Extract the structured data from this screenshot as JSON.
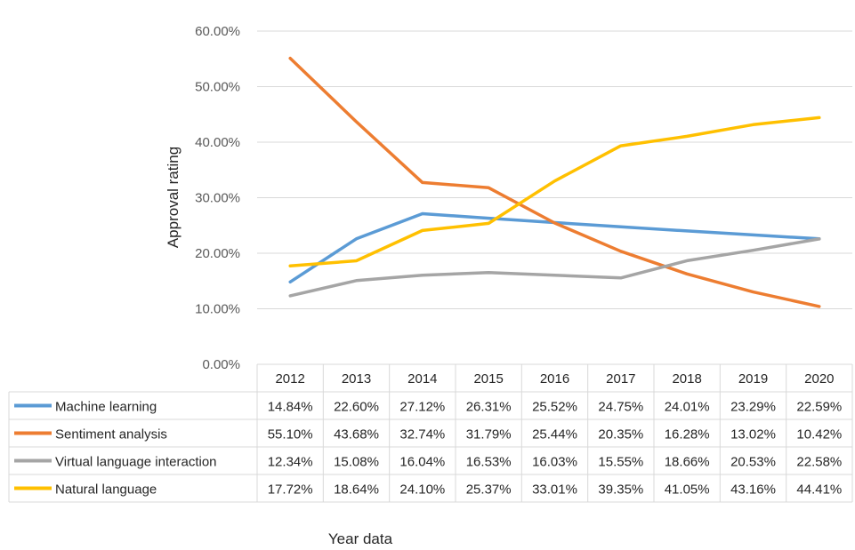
{
  "chart_data": {
    "type": "line",
    "title": "",
    "xlabel": "Year data",
    "ylabel": "Approval rating",
    "ylim": [
      0,
      0.6
    ],
    "y_ticks": [
      "0.00%",
      "10.00%",
      "20.00%",
      "30.00%",
      "40.00%",
      "50.00%",
      "60.00%"
    ],
    "grid": true,
    "legend": "data-table-left",
    "categories": [
      "2012",
      "2013",
      "2014",
      "2015",
      "2016",
      "2017",
      "2018",
      "2019",
      "2020"
    ],
    "series": [
      {
        "name": "Machine learning",
        "color": "#5B9BD5",
        "values": [
          0.1484,
          0.226,
          0.2712,
          0.2631,
          0.2552,
          0.2475,
          0.2401,
          0.2329,
          0.2259
        ],
        "labels": [
          "14.84%",
          "22.60%",
          "27.12%",
          "26.31%",
          "25.52%",
          "24.75%",
          "24.01%",
          "23.29%",
          "22.59%"
        ]
      },
      {
        "name": "Sentiment analysis",
        "color": "#ED7D31",
        "values": [
          0.551,
          0.4368,
          0.3274,
          0.3179,
          0.2544,
          0.2035,
          0.1628,
          0.1302,
          0.1042
        ],
        "labels": [
          "55.10%",
          "43.68%",
          "32.74%",
          "31.79%",
          "25.44%",
          "20.35%",
          "16.28%",
          "13.02%",
          "10.42%"
        ]
      },
      {
        "name": "Virtual language interaction",
        "color": "#A5A5A5",
        "values": [
          0.1234,
          0.1508,
          0.1604,
          0.1653,
          0.1603,
          0.1555,
          0.1866,
          0.2053,
          0.2258
        ],
        "labels": [
          "12.34%",
          "15.08%",
          "16.04%",
          "16.53%",
          "16.03%",
          "15.55%",
          "18.66%",
          "20.53%",
          "22.58%"
        ]
      },
      {
        "name": "Natural language",
        "color": "#FFC000",
        "values": [
          0.1772,
          0.1864,
          0.241,
          0.2537,
          0.3301,
          0.3935,
          0.4105,
          0.4316,
          0.4441
        ],
        "labels": [
          "17.72%",
          "18.64%",
          "24.10%",
          "25.37%",
          "33.01%",
          "39.35%",
          "41.05%",
          "43.16%",
          "44.41%"
        ]
      }
    ]
  }
}
